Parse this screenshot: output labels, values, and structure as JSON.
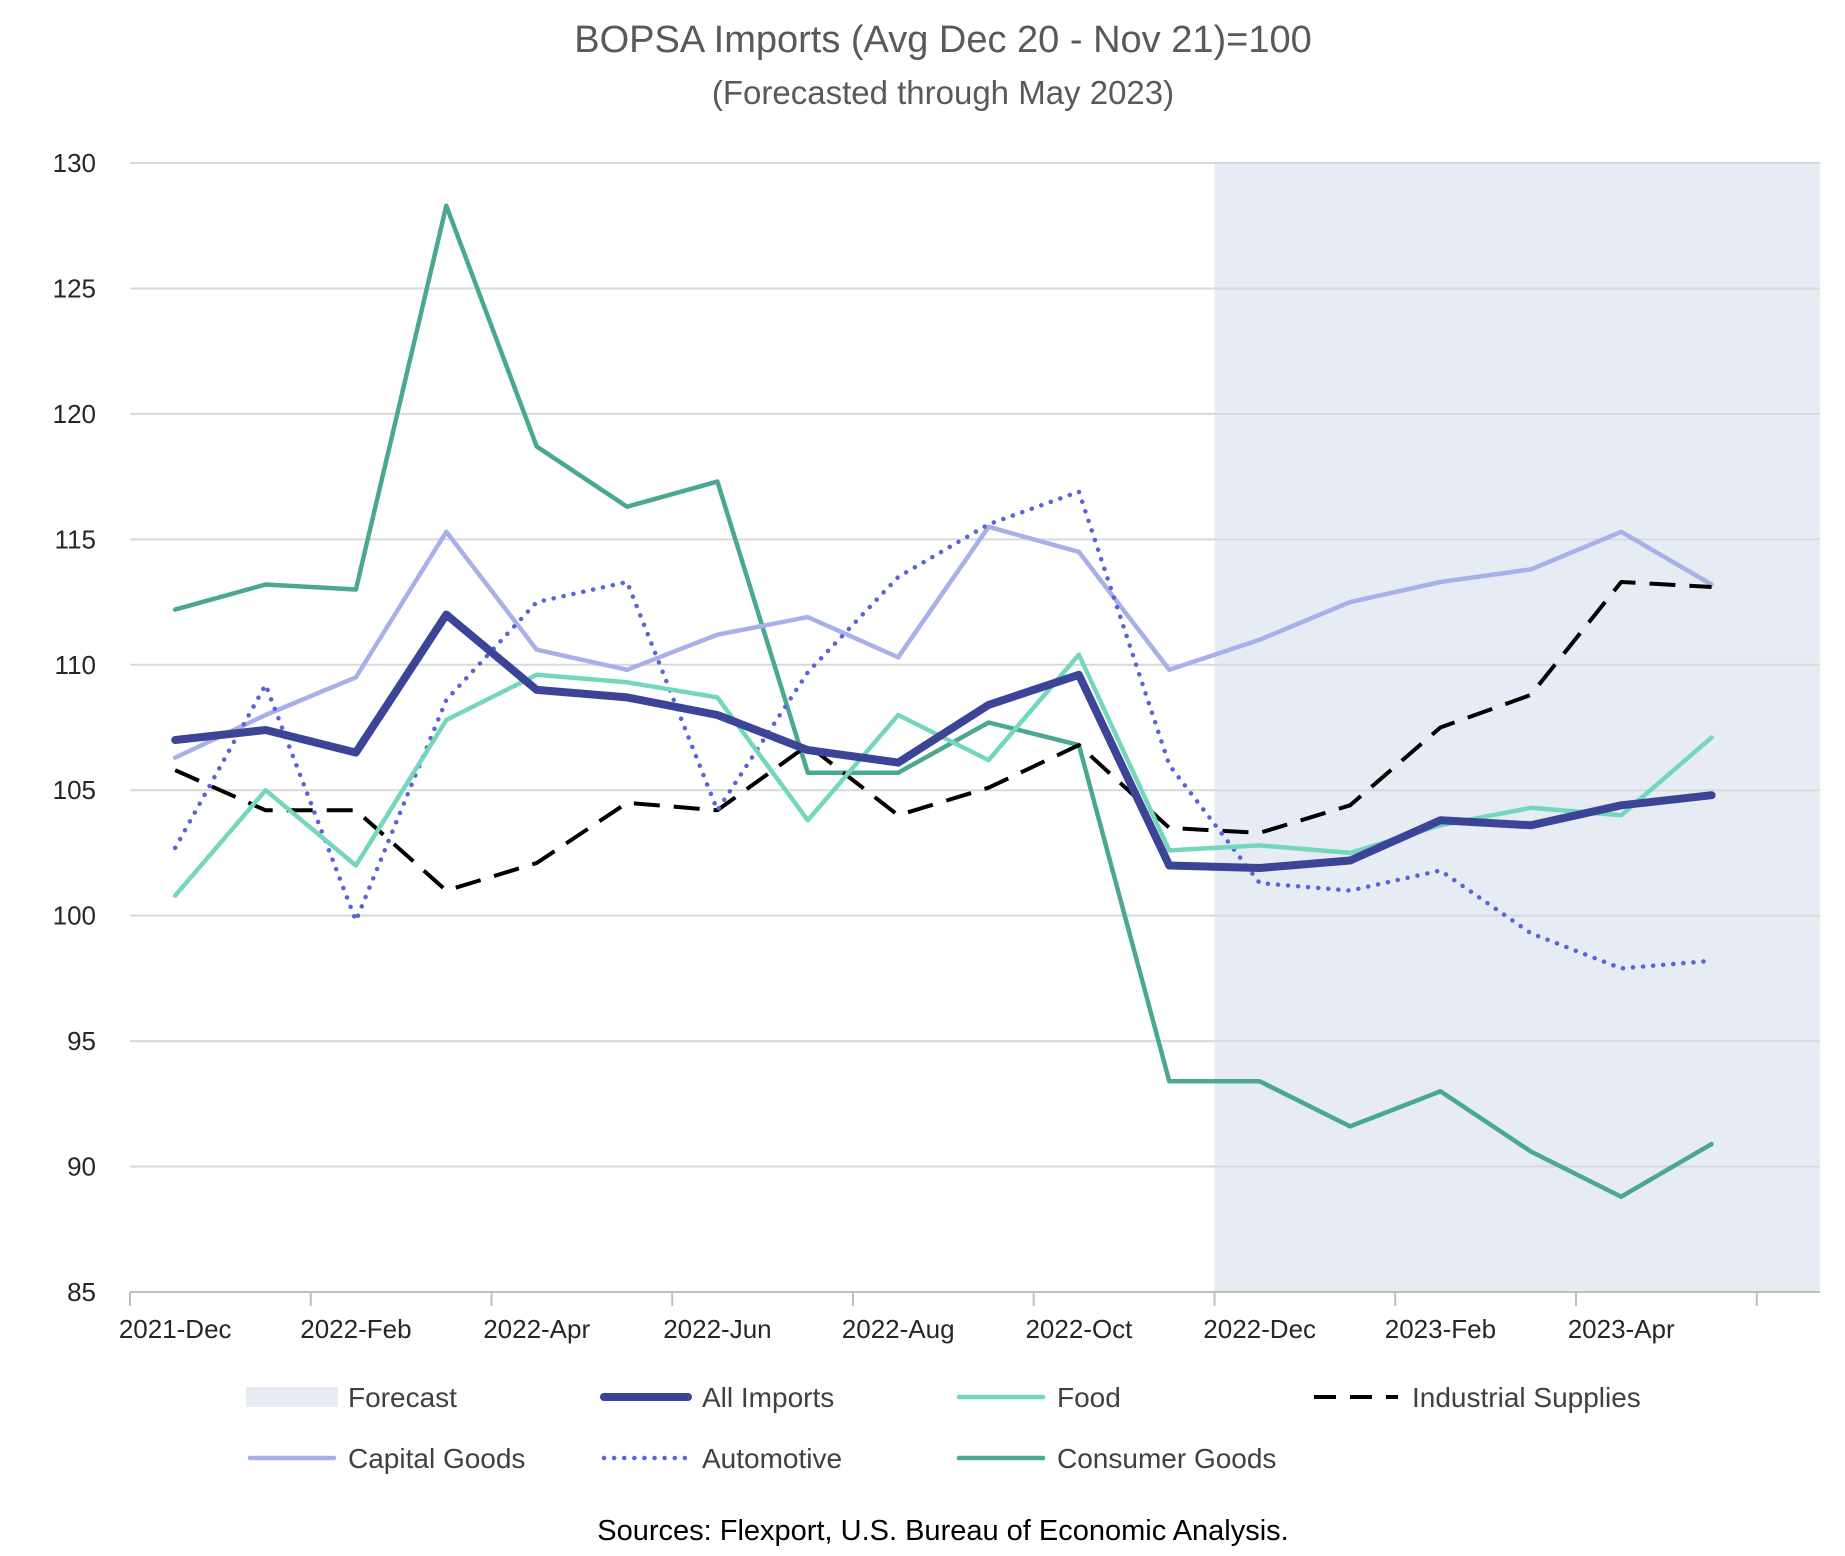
{
  "chart_data": {
    "type": "line",
    "title": "BOPSA Imports (Avg Dec 20 - Nov 21)=100",
    "subtitle": "(Forecasted through May 2023)",
    "source": "Sources: Flexport, U.S. Bureau of Economic Analysis.",
    "ylim": [
      85,
      130
    ],
    "yticks": [
      130,
      125,
      120,
      115,
      110,
      105,
      100,
      95,
      90,
      85
    ],
    "xlabel": "",
    "ylabel": "",
    "grid": true,
    "legend_position": "bottom",
    "x": [
      "2021-Dec",
      "2022-Jan",
      "2022-Feb",
      "2022-Mar",
      "2022-Apr",
      "2022-May",
      "2022-Jun",
      "2022-Jul",
      "2022-Aug",
      "2022-Sep",
      "2022-Oct",
      "2022-Nov",
      "2022-Dec",
      "2023-Jan",
      "2023-Feb",
      "2023-Mar",
      "2023-Apr",
      "2023-May"
    ],
    "xticklabels": [
      {
        "index": 0,
        "label": "2021-Dec"
      },
      {
        "index": 2,
        "label": "2022-Feb"
      },
      {
        "index": 4,
        "label": "2022-Apr"
      },
      {
        "index": 6,
        "label": "2022-Jun"
      },
      {
        "index": 8,
        "label": "2022-Aug"
      },
      {
        "index": 10,
        "label": "2022-Oct"
      },
      {
        "index": 12,
        "label": "2022-Dec"
      },
      {
        "index": 14,
        "label": "2023-Feb"
      },
      {
        "index": 16,
        "label": "2023-Apr"
      }
    ],
    "forecast": {
      "label": "Forecast",
      "from_index": 11.5,
      "color": "#e7ebf3"
    },
    "series": [
      {
        "name": "All Imports",
        "color": "#3b4496",
        "dash": "solid",
        "weight": "heavy",
        "values": [
          107.0,
          107.4,
          106.5,
          112.0,
          109.0,
          108.7,
          108.0,
          106.6,
          106.1,
          108.4,
          109.6,
          102.0,
          101.9,
          102.2,
          103.8,
          103.6,
          104.4,
          104.8
        ]
      },
      {
        "name": "Food",
        "color": "#74d6bd",
        "dash": "solid",
        "weight": "normal",
        "values": [
          100.8,
          105.0,
          102.0,
          107.8,
          109.6,
          109.3,
          108.7,
          103.8,
          108.0,
          106.2,
          110.4,
          102.6,
          102.8,
          102.5,
          103.6,
          104.3,
          104.0,
          107.1
        ]
      },
      {
        "name": "Industrial Supplies",
        "color": "#000000",
        "dash": "dashed",
        "weight": "normal",
        "values": [
          105.8,
          104.2,
          104.2,
          101.0,
          102.1,
          104.5,
          104.2,
          106.8,
          104.0,
          105.1,
          106.8,
          103.5,
          103.3,
          104.4,
          107.5,
          108.8,
          113.3,
          113.1
        ]
      },
      {
        "name": "Capital Goods",
        "color": "#a8b0ea",
        "dash": "solid",
        "weight": "normal",
        "values": [
          106.3,
          108.0,
          109.5,
          115.3,
          110.6,
          109.8,
          111.2,
          111.9,
          110.3,
          115.5,
          114.5,
          109.8,
          111.0,
          112.5,
          113.3,
          113.8,
          115.3,
          113.2
        ]
      },
      {
        "name": "Automotive",
        "color": "#5a63d8",
        "dash": "dotted",
        "weight": "normal",
        "values": [
          102.7,
          109.2,
          99.8,
          108.6,
          112.5,
          113.3,
          104.2,
          109.7,
          113.5,
          115.6,
          116.9,
          106.0,
          101.3,
          101.0,
          101.8,
          99.3,
          97.9,
          98.2
        ]
      },
      {
        "name": "Consumer Goods",
        "color": "#4aa892",
        "dash": "solid",
        "weight": "normal",
        "values": [
          112.2,
          113.2,
          113.0,
          128.3,
          118.7,
          116.3,
          117.3,
          105.7,
          105.7,
          107.7,
          106.8,
          93.4,
          93.4,
          91.6,
          93.0,
          90.6,
          88.8,
          90.9
        ]
      }
    ],
    "legend_rows": [
      [
        "Forecast",
        "All Imports",
        "Food",
        "Industrial Supplies"
      ],
      [
        "Capital Goods",
        "Automotive",
        "Consumer Goods"
      ]
    ]
  }
}
